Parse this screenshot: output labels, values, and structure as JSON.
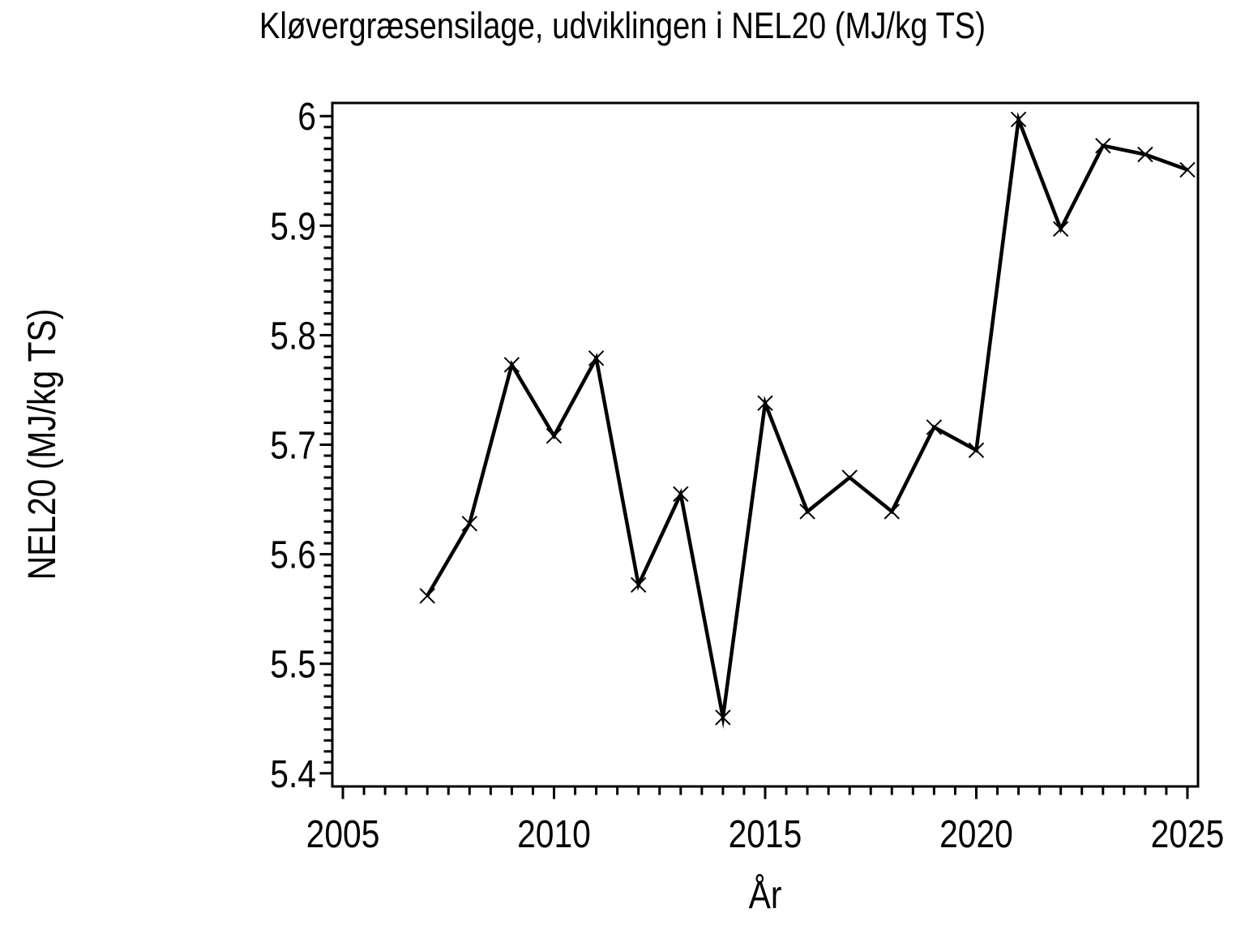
{
  "page": {
    "background": "#FFFFFF",
    "foreground": "#000000"
  },
  "chart_data": {
    "type": "line",
    "title": "Kløvergræsensilage, udviklingen i NEL20 (MJ/kg TS)",
    "xlabel": "År",
    "ylabel": "NEL20 (MJ/kg TS)",
    "series": [
      {
        "name": "NEL20 (MJ/kg TS)",
        "x": [
          2007,
          2008,
          2009,
          2010,
          2011,
          2012,
          2013,
          2014,
          2015,
          2016,
          2017,
          2018,
          2019,
          2020,
          2021,
          2022,
          2023,
          2024,
          2025
        ],
        "values": [
          5.562,
          5.628,
          5.773,
          5.708,
          5.779,
          5.572,
          5.655,
          5.451,
          5.738,
          5.639,
          5.67,
          5.639,
          5.716,
          5.695,
          5.997,
          5.897,
          5.973,
          5.965,
          5.951
        ]
      }
    ],
    "marker": "x",
    "line_color": "#000000",
    "marker_color": "#000000",
    "background": "#FFFFFF",
    "grid": false,
    "legend_position": "none",
    "xlim": [
      2004.75,
      2025.25
    ],
    "ylim": [
      5.388,
      6.012
    ],
    "x_major_ticks": [
      2005,
      2010,
      2015,
      2020,
      2025
    ],
    "x_tick_labels": [
      "2005",
      "2010",
      "2015",
      "2020",
      "2025"
    ],
    "x_minor_step": 0.5,
    "y_major_ticks": [
      5.4,
      5.5,
      5.6,
      5.7,
      5.8,
      5.9,
      6.0
    ],
    "y_tick_labels": [
      "5.4",
      "5.5",
      "5.6",
      "5.7",
      "5.8",
      "5.9",
      "6"
    ],
    "y_minor_step": 0.01
  }
}
